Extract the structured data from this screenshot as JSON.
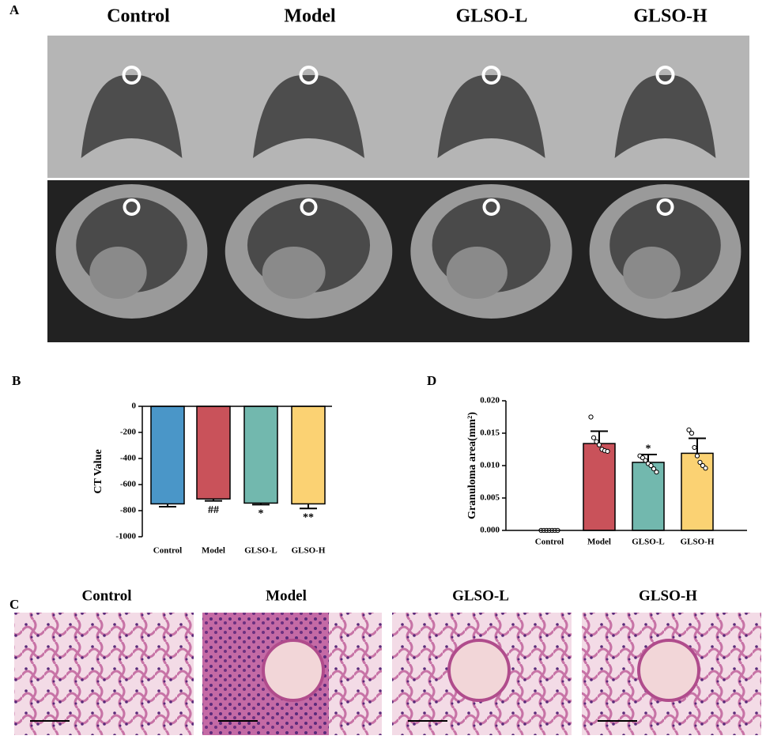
{
  "panel_a": {
    "label": "A",
    "columns": [
      "Control",
      "Model",
      "GLSO-L",
      "GLSO-H"
    ]
  },
  "panel_c": {
    "label": "C",
    "columns": [
      "Control",
      "Model",
      "GLSO-L",
      "GLSO-H"
    ]
  },
  "chart_data": [
    {
      "type": "bar",
      "label": "B",
      "ylabel": "CT Value",
      "categories": [
        "Control",
        "Model",
        "GLSO-L",
        "GLSO-H"
      ],
      "values": [
        -748,
        -710,
        -742,
        -748
      ],
      "errors": [
        22,
        15,
        12,
        35
      ],
      "annotations": [
        null,
        "##",
        "*",
        "**"
      ],
      "colors": [
        "#4a96c8",
        "#c9525a",
        "#72b8ae",
        "#fbd273"
      ],
      "ylim": [
        -1000,
        0
      ],
      "yticks": [
        -1000,
        -800,
        -600,
        -400,
        -200,
        0
      ]
    },
    {
      "type": "bar",
      "label": "D",
      "ylabel": "Granuloma area(mm²)",
      "categories": [
        "Control",
        "Model",
        "GLSO-L",
        "GLSO-H"
      ],
      "values": [
        0,
        0.0134,
        0.0105,
        0.0119
      ],
      "errors": [
        0,
        0.0019,
        0.0012,
        0.0023
      ],
      "points": [
        [
          0,
          0,
          0,
          0,
          0,
          0,
          0
        ],
        [
          0.0175,
          0.0143,
          0.0137,
          0.0132,
          0.0125,
          0.0123,
          0.0122
        ],
        [
          0.0115,
          0.0112,
          0.0108,
          0.0103,
          0.01,
          0.0095,
          0.009
        ],
        [
          0.0155,
          0.015,
          0.0128,
          0.0115,
          0.0105,
          0.01,
          0.0096
        ]
      ],
      "annotations": [
        null,
        null,
        "*",
        null
      ],
      "colors": [
        "#4a96c8",
        "#c9525a",
        "#72b8ae",
        "#fbd273"
      ],
      "ylim": [
        0,
        0.02
      ],
      "yticks": [
        {
          "value": 0,
          "label": "0.000"
        },
        {
          "value": 0.005,
          "label": "0.005"
        },
        {
          "value": 0.01,
          "label": "0.010"
        },
        {
          "value": 0.015,
          "label": "0.015"
        },
        {
          "value": 0.02,
          "label": "0.020"
        }
      ]
    }
  ]
}
